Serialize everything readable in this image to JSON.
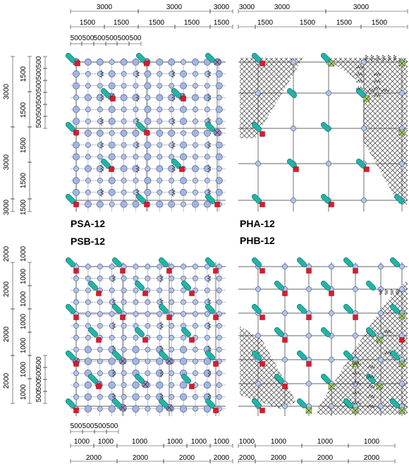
{
  "diagrams": [
    {
      "id": "psa",
      "label": "PSA-12"
    },
    {
      "id": "pha",
      "label": "PHA-12"
    },
    {
      "id": "psb",
      "label": "PSB-12"
    },
    {
      "id": "phb",
      "label": "PHB-12"
    }
  ],
  "dimensions": {
    "top_row1": [
      "3000",
      "3000",
      "3000",
      "3000",
      "3000",
      "3000"
    ],
    "top_row2": [
      "1500",
      "1500",
      "1500",
      "1500",
      "1500",
      "1500",
      "1500",
      "1500",
      "1500"
    ],
    "top_row3": [
      "500",
      "500",
      "500",
      "500",
      "500",
      "500"
    ],
    "left_upper_outer": [
      "3000",
      "3000",
      "3000"
    ],
    "left_upper_mid": [
      "1500",
      "1500",
      "1500",
      "1500",
      "1500"
    ],
    "left_upper_inner": [
      "500",
      "500",
      "500",
      "500",
      "500",
      "500"
    ],
    "left_lower_outer": [
      "2000",
      "2000",
      "2000",
      "2000"
    ],
    "left_lower_mid": [
      "1000",
      "1000",
      "1000",
      "1000",
      "1000",
      "1000",
      "1000"
    ],
    "left_lower_inner": [
      "500",
      "500",
      "500",
      "500",
      "500",
      "500"
    ],
    "bottom_row1": [
      "500",
      "500",
      "500",
      "500"
    ],
    "bottom_row2": [
      "1000",
      "1000",
      "1000",
      "1000",
      "1000",
      "1000",
      "1000",
      "1000",
      "1000",
      "1000"
    ],
    "bottom_row3": [
      "2000",
      "2000",
      "2000",
      "2000",
      "2000",
      "2000",
      "2000",
      "2000"
    ]
  },
  "colors": {
    "grid_line": "#333333",
    "small_circle": "#b3c3e6",
    "large_circle": "#a3b6e0",
    "circle_stroke": "#3a4f8f",
    "brace": "#1fb5a8",
    "brace_stroke": "#0f5e57",
    "square": "#e0182d",
    "cross_circle": "#9a8ec6",
    "green_square": "#a9d46c",
    "hatch": "#1a1a1a"
  }
}
